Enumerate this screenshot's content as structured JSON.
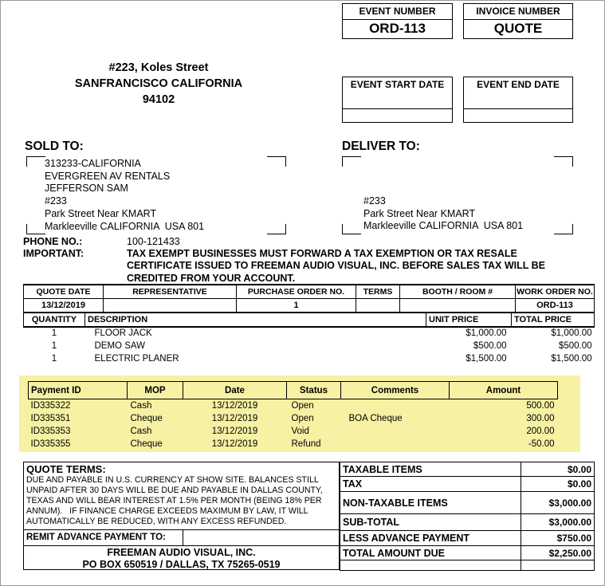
{
  "colors": {
    "highlight_yellow": "#f6f1a3",
    "page_border_gray": "#9a9a9a",
    "text_black": "#000000"
  },
  "header": {
    "event_number_label": "EVENT NUMBER",
    "event_number_value": "ORD-113",
    "invoice_number_label": "INVOICE NUMBER",
    "invoice_number_value": "QUOTE",
    "event_start_date_label": "EVENT START DATE",
    "event_end_date_label": "EVENT END DATE",
    "company_address_lines": [
      "#223, Koles Street",
      "SANFRANCISCO CALIFORNIA",
      "94102"
    ]
  },
  "sold_to": {
    "label": "SOLD TO:",
    "lines": [
      "313233-CALIFORNIA",
      "EVERGREEN AV RENTALS",
      "JEFFERSON SAM",
      "#233",
      "Park Street Near KMART",
      "Markleeville CALIFORNIA  USA 801"
    ]
  },
  "deliver_to": {
    "label": "DELIVER TO:",
    "lines": [
      "",
      "",
      "",
      "#233",
      "Park Street Near KMART",
      "Markleeville CALIFORNIA  USA 801"
    ]
  },
  "phone": {
    "label": "PHONE NO.:",
    "value": "100-121433"
  },
  "important": {
    "label": "IMPORTANT:",
    "lines": [
      "TAX EXEMPT BUSINESSES MUST FORWARD A TAX EXEMPTION OR TAX RESALE",
      "CERTIFICATE ISSUED TO FREEMAN AUDIO VISUAL, INC. BEFORE SALES TAX WILL BE",
      "CREDITED FROM YOUR ACCOUNT."
    ]
  },
  "quote_info": {
    "headers": [
      "QUOTE DATE",
      "REPRESENTATIVE",
      "PURCHASE ORDER NO.",
      "TERMS",
      "BOOTH / ROOM #",
      "WORK ORDER NO."
    ],
    "values": [
      "13/12/2019",
      "",
      "1",
      "",
      "",
      "ORD-113"
    ]
  },
  "items": {
    "headers": [
      "QUANTITY",
      "DESCRIPTION",
      "UNIT PRICE",
      "TOTAL PRICE"
    ],
    "rows": [
      [
        "1",
        "FLOOR JACK",
        "$1,000.00",
        "$1,000.00"
      ],
      [
        "1",
        "DEMO SAW",
        "$500.00",
        "$500.00"
      ],
      [
        "1",
        "ELECTRIC PLANER",
        "$1,500.00",
        "$1,500.00"
      ]
    ]
  },
  "payments": {
    "headers": [
      "Payment ID",
      "MOP",
      "Date",
      "Status",
      "Comments",
      "Amount"
    ],
    "rows": [
      [
        "ID335322",
        "Cash",
        "13/12/2019",
        "Open",
        "",
        "500.00"
      ],
      [
        "ID335351",
        "Cheque",
        "13/12/2019",
        "Open",
        "BOA Cheque",
        "300.00"
      ],
      [
        "ID335353",
        "Cash",
        "13/12/2019",
        "Void",
        "",
        "200.00"
      ],
      [
        "ID335355",
        "Cheque",
        "13/12/2019",
        "Refund",
        "",
        "-50.00"
      ]
    ]
  },
  "quote_terms": {
    "label": "QUOTE TERMS:",
    "lines": [
      "DUE AND PAYABLE IN U.S. CURRENCY AT SHOW SITE. BALANCES STILL",
      "UNPAID AFTER 30 DAYS WILL BE DUE AND PAYABLE IN DALLAS COUNTY,",
      "TEXAS AND WILL BEAR INTEREST AT 1.5% PER MONTH (BEING 18% PER",
      "ANNUM).   IF FINANCE CHARGE EXCEEDS MAXIMUM BY LAW, IT WILL",
      "AUTOMATICALLY BE REDUCED, WITH ANY EXCESS REFUNDED."
    ]
  },
  "remit": {
    "label": "REMIT ADVANCE PAYMENT TO:",
    "name": "FREEMAN AUDIO VISUAL, INC.",
    "address": "PO BOX 650519 / DALLAS, TX 75265-0519"
  },
  "totals": {
    "rows": [
      {
        "label": "TAXABLE ITEMS",
        "value": "$0.00"
      },
      {
        "label": "TAX",
        "value": "$0.00"
      },
      {
        "label": "NON-TAXABLE ITEMS",
        "value": "$3,000.00"
      },
      {
        "label": "SUB-TOTAL",
        "value": "$3,000.00"
      },
      {
        "label": "LESS ADVANCE PAYMENT",
        "value": "$750.00"
      },
      {
        "label": "TOTAL AMOUNT DUE",
        "value": "$2,250.00"
      }
    ]
  }
}
